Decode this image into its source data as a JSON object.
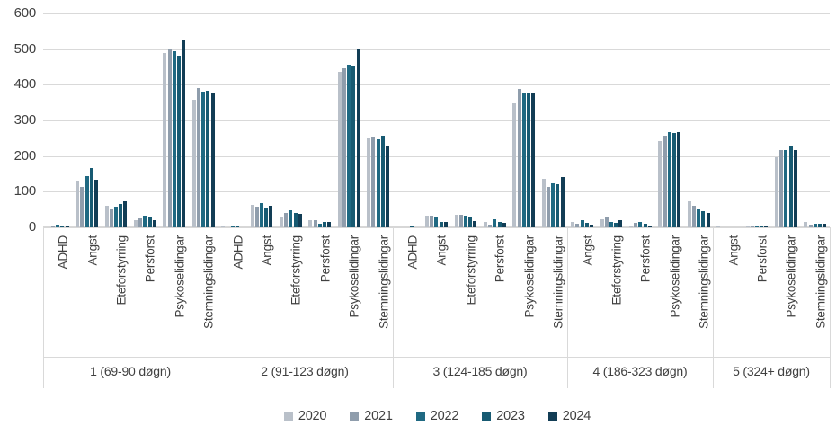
{
  "chart_data": {
    "type": "bar",
    "title": "",
    "ylabel": "",
    "xlabel": "",
    "ylim": [
      0,
      600
    ],
    "yticks": [
      0,
      100,
      200,
      300,
      400,
      500,
      600
    ],
    "grid": true,
    "legend_position": "bottom",
    "series_names": [
      "2020",
      "2021",
      "2022",
      "2023",
      "2024"
    ],
    "series_colors": [
      "#b9c0c9",
      "#8f9dac",
      "#1f6982",
      "#175a72",
      "#123d55"
    ],
    "axis_colors": {
      "grid": "#d9d9d9",
      "text": "#404040"
    },
    "groups": [
      {
        "label": "1 (69-90 døgn)",
        "categories": [
          "ADHD",
          "Angst",
          "Eteforstyrring",
          "Persforst",
          "Psykoselidingar",
          "Stemningslidingar"
        ],
        "values": [
          [
            0,
            6,
            8,
            6,
            3
          ],
          [
            130,
            114,
            144,
            167,
            134
          ],
          [
            60,
            51,
            58,
            66,
            72
          ],
          [
            19,
            24,
            32,
            29,
            20
          ],
          [
            490,
            498,
            495,
            481,
            524
          ],
          [
            357,
            390,
            380,
            384,
            376
          ]
        ]
      },
      {
        "label": "2 (91-123 døgn)",
        "categories": [
          "ADHD",
          "Angst",
          "Eteforstyrring",
          "Persforst",
          "Psykoselidingar",
          "Stemningslidingar"
        ],
        "values": [
          [
            4,
            0,
            5,
            6,
            0
          ],
          [
            62,
            58,
            67,
            52,
            60
          ],
          [
            30,
            40,
            49,
            41,
            39
          ],
          [
            19,
            20,
            11,
            14,
            14
          ],
          [
            435,
            447,
            456,
            453,
            499
          ],
          [
            250,
            253,
            248,
            256,
            227
          ]
        ]
      },
      {
        "label": "3 (124-185 døgn)",
        "categories": [
          "ADHD",
          "Angst",
          "Eteforstyrring",
          "Persforst",
          "Psykoselidingar",
          "Stemningslidingar"
        ],
        "values": [
          [
            0,
            0,
            0,
            5,
            0
          ],
          [
            32,
            33,
            28,
            15,
            14
          ],
          [
            35,
            36,
            33,
            28,
            18
          ],
          [
            16,
            8,
            23,
            14,
            13
          ],
          [
            348,
            389,
            375,
            378,
            376
          ],
          [
            136,
            114,
            123,
            121,
            140
          ]
        ]
      },
      {
        "label": "4 (186-323 døgn)",
        "categories": [
          "Angst",
          "Eteforstyrring",
          "Persforst",
          "Psykoselidingar",
          "Stemningslidingar"
        ],
        "values": [
          [
            15,
            10,
            19,
            13,
            7
          ],
          [
            22,
            27,
            15,
            12,
            21
          ],
          [
            6,
            12,
            16,
            9,
            5
          ],
          [
            243,
            257,
            268,
            264,
            266
          ],
          [
            73,
            60,
            50,
            45,
            41
          ]
        ]
      },
      {
        "label": "5 (324+ døgn)",
        "categories": [
          "Angst",
          "Persforst",
          "Psykoselidingar",
          "Stemningslidingar"
        ],
        "values": [
          [
            5,
            0,
            0,
            0,
            0
          ],
          [
            3,
            4,
            6,
            6,
            5
          ],
          [
            197,
            216,
            218,
            226,
            216
          ],
          [
            15,
            7,
            11,
            11,
            9
          ]
        ]
      }
    ]
  }
}
